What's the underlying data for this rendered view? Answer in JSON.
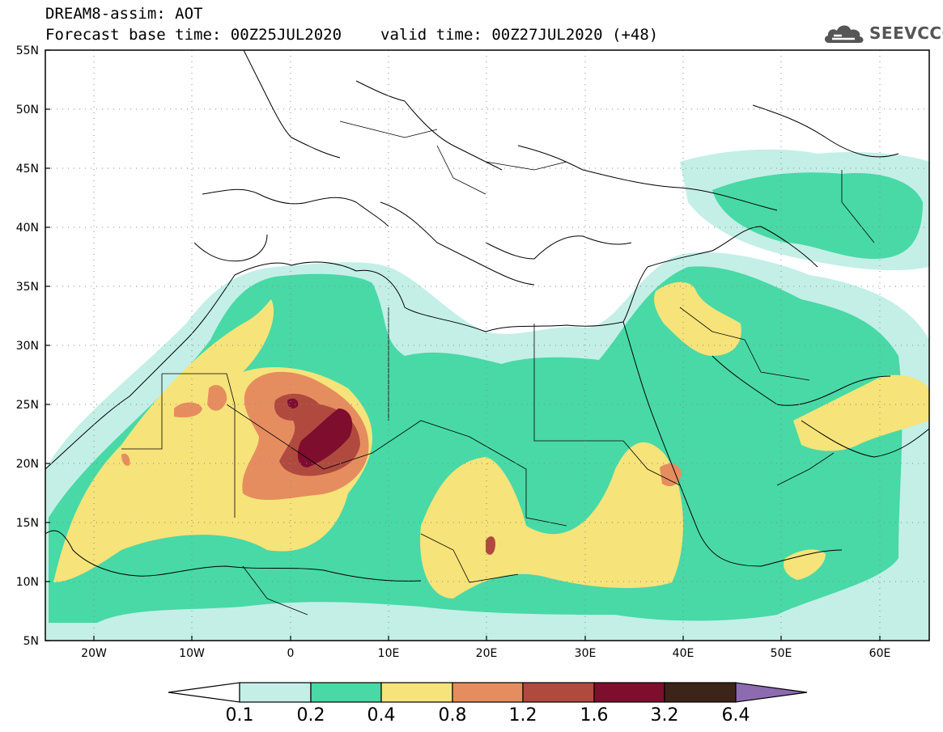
{
  "header": {
    "title": "DREAM8-assim: AOT",
    "base_time": "Forecast base time: 00Z25JUL2020",
    "valid_time": "valid time: 00Z27JUL2020 (+48)"
  },
  "logo": {
    "text": "SEEVCCC",
    "icon": "cloud-logo-icon"
  },
  "map": {
    "lon_range": [
      -25,
      65
    ],
    "lat_range": [
      5,
      55
    ],
    "lat_ticks": [
      "55N",
      "50N",
      "45N",
      "40N",
      "35N",
      "30N",
      "25N",
      "20N",
      "15N",
      "10N",
      "5N"
    ],
    "lon_ticks": [
      "20W",
      "10W",
      "0",
      "10E",
      "20E",
      "30E",
      "40E",
      "50E",
      "60E"
    ],
    "grid": "dotted"
  },
  "colorbar": {
    "labels": [
      "0.1",
      "0.2",
      "0.4",
      "0.8",
      "1.2",
      "1.6",
      "3.2",
      "6.4"
    ],
    "colors": [
      "#ffffff",
      "#c3efe7",
      "#48d9a6",
      "#f6e37a",
      "#e68d5f",
      "#b04a3f",
      "#7f0d2e",
      "#3d2418",
      "#8c6bb1"
    ]
  }
}
